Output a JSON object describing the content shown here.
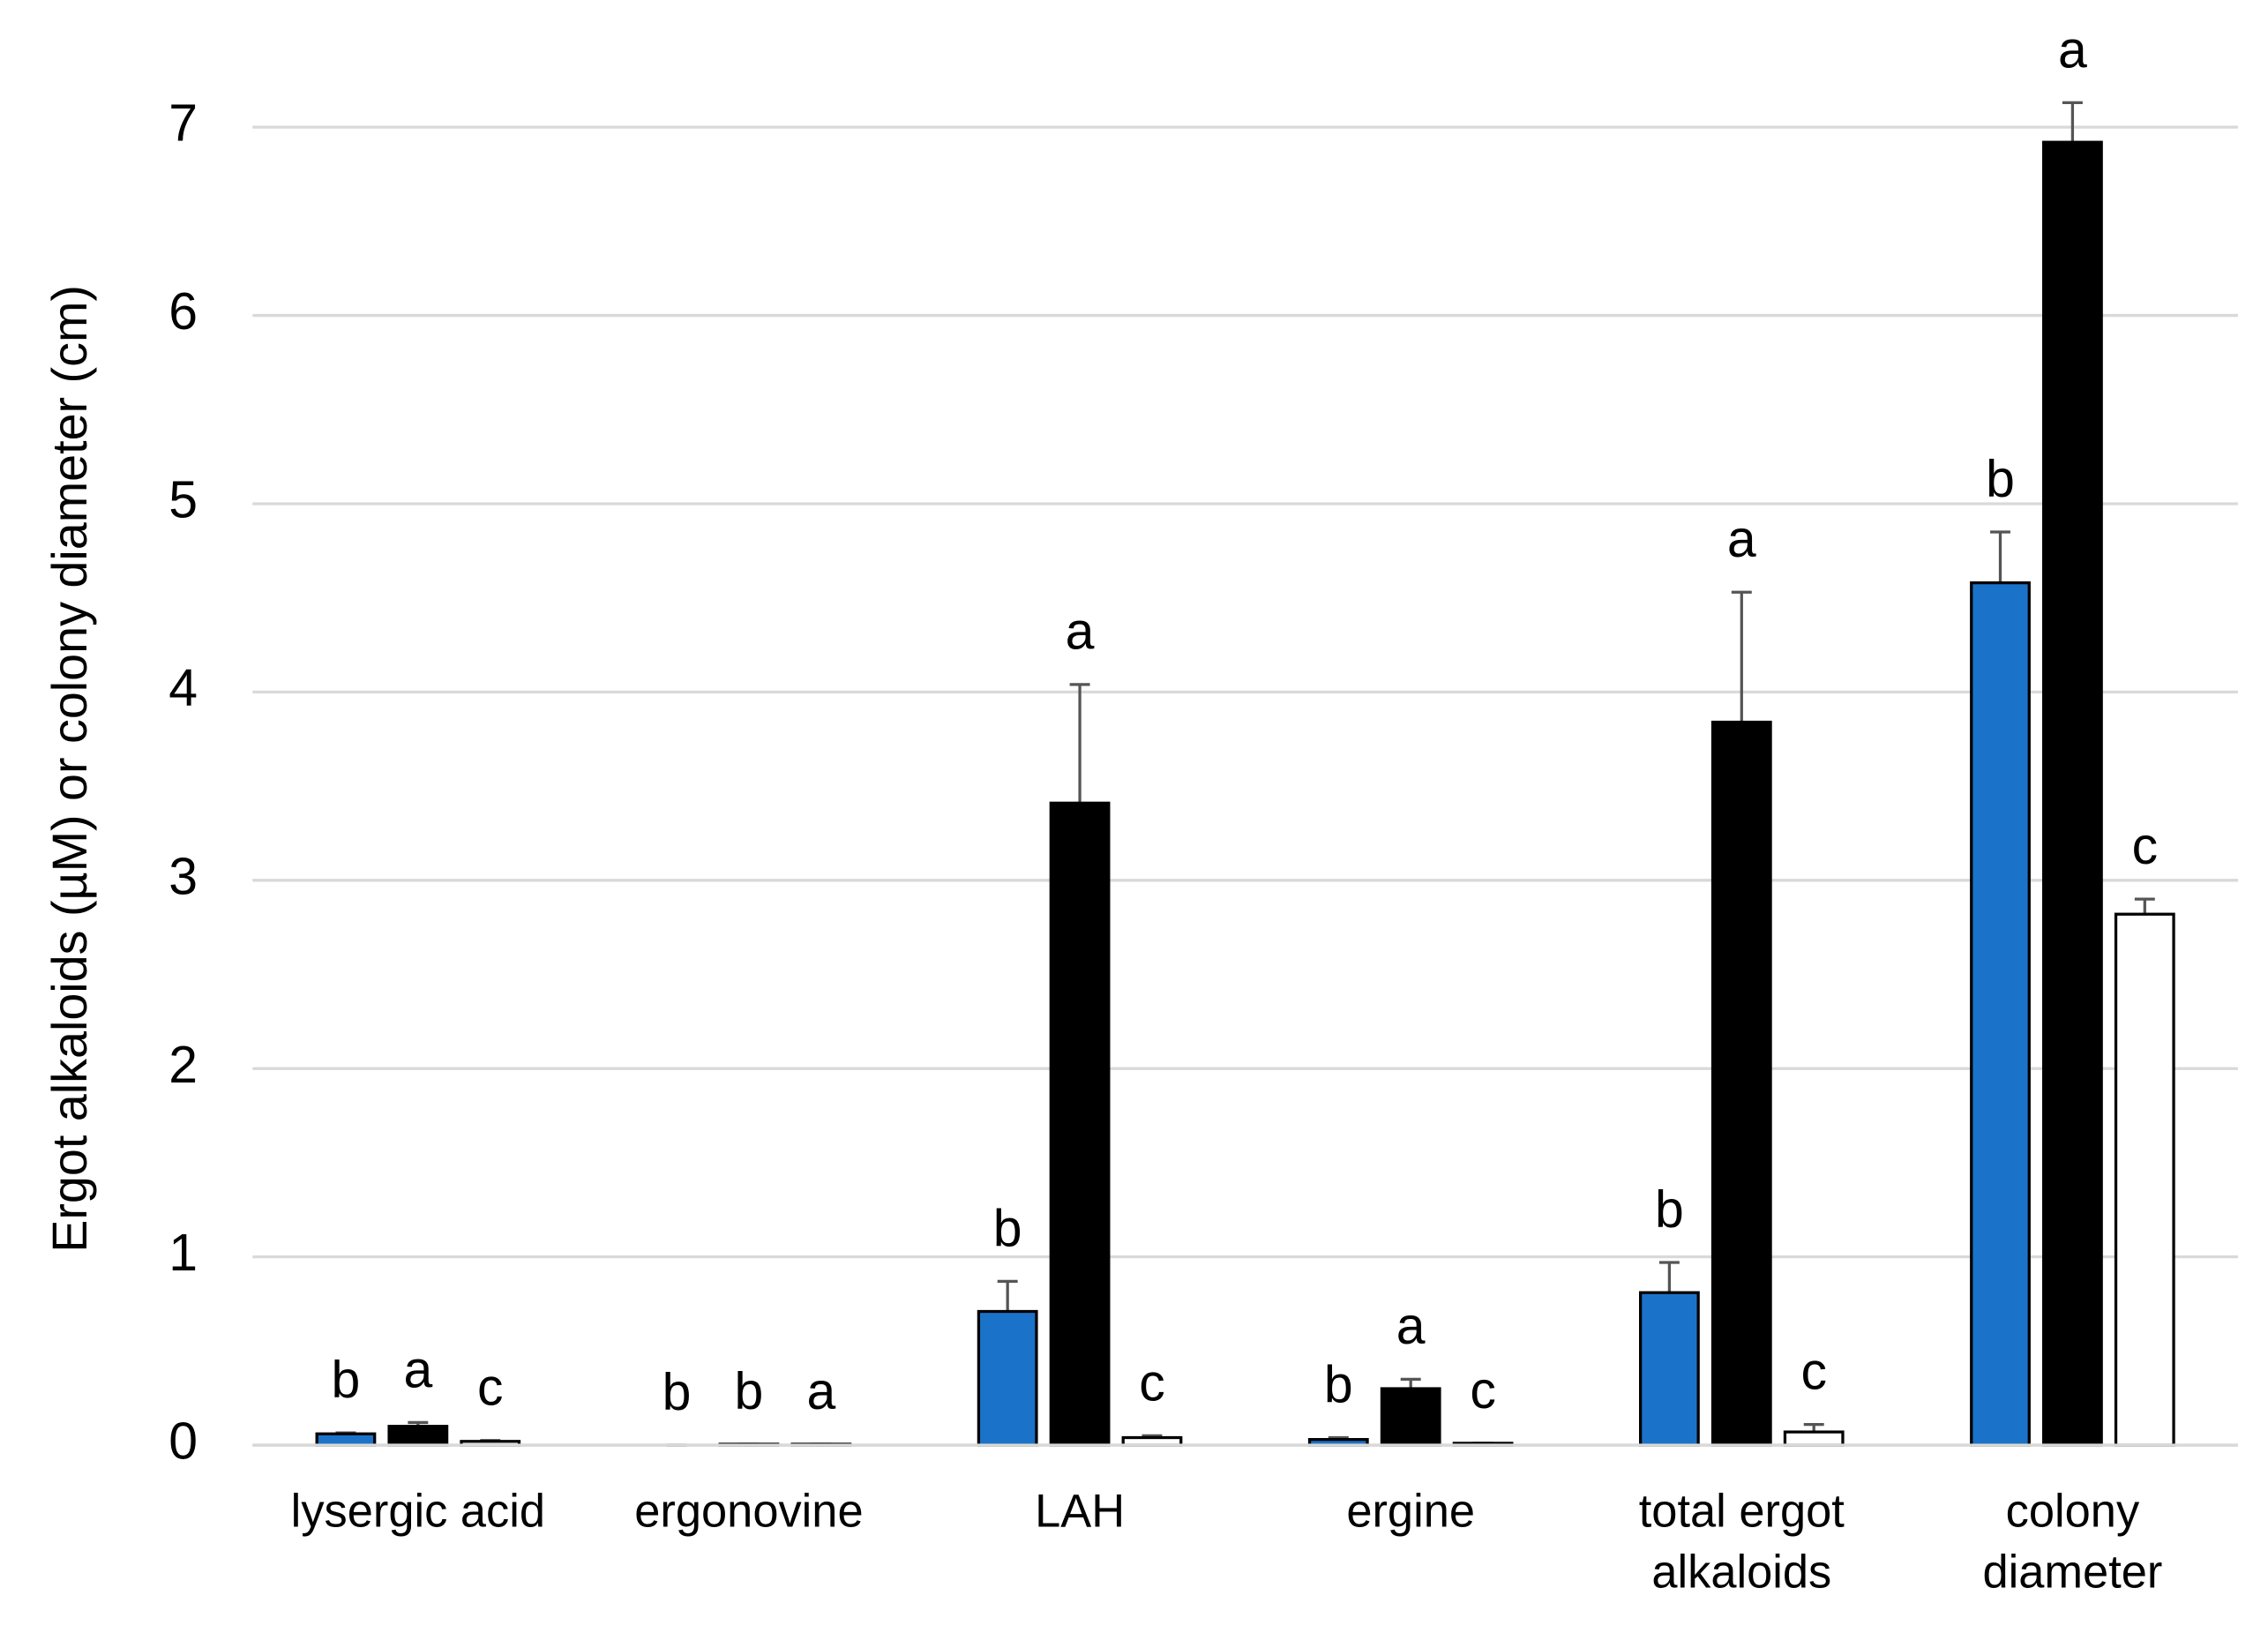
{
  "chart_data": {
    "type": "bar",
    "y_label": "Ergot alkaloids (µM) or colony diameter (cm)",
    "categories": [
      [
        "lysergic acid"
      ],
      [
        "ergonovine"
      ],
      [
        "LAH"
      ],
      [
        "ergine"
      ],
      [
        "total ergot",
        "alkaloids"
      ],
      [
        "colony",
        "diameter"
      ]
    ],
    "series": [
      {
        "color": "#1a73c9",
        "values": [
          0.06,
          0,
          0.71,
          0.03,
          0.81,
          4.58
        ],
        "errors": [
          0.005,
          0,
          0.16,
          0.01,
          0.16,
          0.27
        ],
        "letters": [
          "b",
          "b",
          "b",
          "b",
          "b",
          "b"
        ]
      },
      {
        "color": "#000000",
        "values": [
          0.1,
          0.005,
          3.41,
          0.3,
          3.84,
          6.92
        ],
        "errors": [
          0.02,
          0,
          0.63,
          0.05,
          0.69,
          0.21
        ],
        "letters": [
          "a",
          "b",
          "a",
          "a",
          "a",
          "a"
        ]
      },
      {
        "color": "#ffffff",
        "values": [
          0.02,
          0.005,
          0.04,
          0.01,
          0.07,
          2.82
        ],
        "errors": [
          0.005,
          0,
          0.01,
          0,
          0.04,
          0.08
        ],
        "letters": [
          "c",
          "a",
          "c",
          "c",
          "c",
          "c"
        ]
      }
    ],
    "ylim": [
      0,
      7
    ],
    "yticks": [
      0,
      1,
      2,
      3,
      4,
      5,
      6,
      7
    ],
    "grid": true
  }
}
